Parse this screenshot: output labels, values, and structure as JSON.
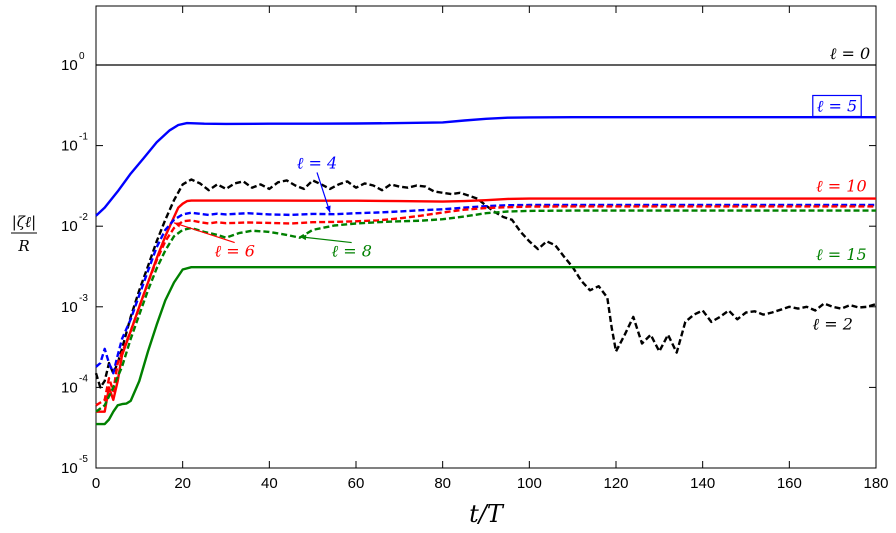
{
  "chart_data": {
    "type": "line",
    "xlabel": "t/T",
    "ylabel": {
      "numerator": "|ζℓ|",
      "denominator": "R"
    },
    "xlim": [
      0,
      180
    ],
    "ylim": [
      1e-05,
      5
    ],
    "yscale": "log",
    "grid": false,
    "xticks": [
      "0",
      "20",
      "40",
      "60",
      "80",
      "100",
      "120",
      "140",
      "160",
      "180"
    ],
    "yticks": [
      {
        "value": 1e-05,
        "base": "10",
        "exp": "-5"
      },
      {
        "value": 0.0001,
        "base": "10",
        "exp": "-4"
      },
      {
        "value": 0.001,
        "base": "10",
        "exp": "-3"
      },
      {
        "value": 0.01,
        "base": "10",
        "exp": "-2"
      },
      {
        "value": 0.1,
        "base": "10",
        "exp": "-1"
      },
      {
        "value": 1,
        "base": "10",
        "exp": "0"
      }
    ],
    "series": [
      {
        "name": "ℓ = 0",
        "color": "#000000",
        "dash": "solid",
        "width": 1.3,
        "x": [
          0,
          180
        ],
        "y": [
          1,
          1
        ]
      },
      {
        "name": "ℓ = 5",
        "color": "#0000ff",
        "dash": "solid",
        "width": 2.4,
        "x": [
          0,
          2,
          5,
          8,
          11,
          14,
          17,
          19,
          21,
          25,
          30,
          40,
          50,
          60,
          70,
          80,
          85,
          90,
          95,
          100,
          110,
          120,
          140,
          160,
          180
        ],
        "y": [
          0.0135,
          0.017,
          0.027,
          0.045,
          0.07,
          0.11,
          0.155,
          0.18,
          0.19,
          0.187,
          0.186,
          0.187,
          0.187,
          0.188,
          0.19,
          0.194,
          0.205,
          0.215,
          0.222,
          0.224,
          0.225,
          0.225,
          0.225,
          0.225,
          0.225
        ]
      },
      {
        "name": "ℓ = 2",
        "color": "#000000",
        "dash": "6,3",
        "width": 2.4,
        "x": [
          0,
          1,
          2,
          3,
          4,
          5,
          6,
          8,
          10,
          12,
          14,
          16,
          18,
          20,
          22,
          24,
          26,
          28,
          30,
          32,
          34,
          36,
          38,
          40,
          42,
          44,
          46,
          48,
          50,
          52,
          54,
          56,
          58,
          60,
          62,
          64,
          66,
          68,
          70,
          72,
          74,
          76,
          78,
          80,
          82,
          84,
          86,
          88,
          90,
          92,
          94,
          96,
          98,
          100,
          102,
          104,
          106,
          108,
          110,
          112,
          114,
          116,
          118,
          119,
          120,
          122,
          124,
          126,
          128,
          130,
          132,
          134,
          136,
          138,
          140,
          142,
          144,
          146,
          148,
          150,
          152,
          154,
          156,
          158,
          160,
          162,
          164,
          166,
          168,
          170,
          172,
          174,
          176,
          178,
          180
        ],
        "y": [
          0.00015,
          0.0001,
          0.00012,
          0.0002,
          0.00015,
          0.0002,
          0.0003,
          0.00075,
          0.0016,
          0.0032,
          0.0065,
          0.012,
          0.021,
          0.033,
          0.038,
          0.034,
          0.028,
          0.033,
          0.029,
          0.034,
          0.036,
          0.03,
          0.033,
          0.029,
          0.035,
          0.037,
          0.032,
          0.029,
          0.037,
          0.033,
          0.029,
          0.033,
          0.036,
          0.03,
          0.034,
          0.032,
          0.028,
          0.033,
          0.031,
          0.03,
          0.032,
          0.031,
          0.027,
          0.026,
          0.025,
          0.026,
          0.024,
          0.022,
          0.018,
          0.015,
          0.013,
          0.012,
          0.0085,
          0.0065,
          0.0052,
          0.0065,
          0.0058,
          0.0042,
          0.0031,
          0.0021,
          0.0016,
          0.0018,
          0.0013,
          0.00055,
          0.00028,
          0.00045,
          0.00075,
          0.00035,
          0.00045,
          0.00028,
          0.00045,
          0.00027,
          0.00065,
          0.0008,
          0.0009,
          0.00065,
          0.00075,
          0.0009,
          0.0007,
          0.00085,
          0.00088,
          0.0008,
          0.00085,
          0.00092,
          0.001,
          0.00095,
          0.001,
          0.0009,
          0.0011,
          0.001,
          0.00095,
          0.00105,
          0.00098,
          0.001,
          0.00108
        ]
      },
      {
        "name": "ℓ = 10",
        "color": "#ff0000",
        "dash": "solid",
        "width": 2.4,
        "x": [
          0,
          2,
          3,
          4,
          5,
          6,
          8,
          10,
          12,
          14,
          16,
          18,
          19,
          20,
          21,
          22,
          30,
          40,
          50,
          60,
          70,
          80,
          85,
          90,
          95,
          100,
          120,
          140,
          160,
          180
        ],
        "y": [
          5e-05,
          5e-05,
          0.0001,
          7e-05,
          0.00012,
          0.00025,
          0.0005,
          0.001,
          0.002,
          0.004,
          0.0075,
          0.013,
          0.017,
          0.019,
          0.0205,
          0.0208,
          0.0208,
          0.0208,
          0.0207,
          0.0207,
          0.0205,
          0.0202,
          0.0205,
          0.021,
          0.0218,
          0.022,
          0.022,
          0.022,
          0.022,
          0.022
        ]
      },
      {
        "name": "ℓ = 4",
        "color": "#0000ff",
        "dash": "6,3",
        "width": 2.4,
        "x": [
          0,
          1,
          2,
          3,
          4,
          5,
          6,
          8,
          10,
          12,
          14,
          16,
          18,
          20,
          22,
          24,
          26,
          28,
          30,
          35,
          40,
          45,
          50,
          55,
          60,
          65,
          70,
          75,
          80,
          85,
          90,
          95,
          100,
          110,
          120,
          140,
          160,
          180
        ],
        "y": [
          0.00018,
          0.0002,
          0.0003,
          0.0002,
          0.00015,
          0.00025,
          0.0004,
          0.0007,
          0.0014,
          0.0028,
          0.0055,
          0.009,
          0.012,
          0.014,
          0.0147,
          0.0142,
          0.0138,
          0.0143,
          0.014,
          0.0145,
          0.014,
          0.0138,
          0.0142,
          0.0141,
          0.0145,
          0.0148,
          0.0152,
          0.0158,
          0.0162,
          0.017,
          0.0177,
          0.0182,
          0.0183,
          0.0183,
          0.0183,
          0.0183,
          0.0183,
          0.0183
        ]
      },
      {
        "name": "ℓ = 6",
        "color": "#ff0000",
        "dash": "6,3",
        "width": 2.4,
        "x": [
          0,
          2,
          3,
          4,
          5,
          6,
          8,
          10,
          12,
          14,
          16,
          18,
          20,
          22,
          24,
          26,
          28,
          30,
          35,
          40,
          45,
          50,
          55,
          60,
          65,
          70,
          75,
          80,
          85,
          90,
          95,
          100,
          110,
          120,
          140,
          160,
          180
        ],
        "y": [
          6e-05,
          7e-05,
          0.00013,
          9e-05,
          0.0002,
          0.00027,
          0.0005,
          0.001,
          0.002,
          0.0038,
          0.0065,
          0.0095,
          0.0115,
          0.0118,
          0.0112,
          0.0108,
          0.0112,
          0.0109,
          0.0111,
          0.011,
          0.0108,
          0.0112,
          0.0113,
          0.0115,
          0.0118,
          0.0125,
          0.0135,
          0.0148,
          0.016,
          0.0168,
          0.0172,
          0.0175,
          0.0176,
          0.0176,
          0.0176,
          0.0176,
          0.0176
        ]
      },
      {
        "name": "ℓ = 8",
        "color": "#008000",
        "dash": "6,3",
        "width": 2.4,
        "x": [
          0,
          2,
          4,
          6,
          8,
          10,
          12,
          14,
          16,
          18,
          20,
          22,
          25,
          28,
          30,
          33,
          36,
          40,
          44,
          47,
          50,
          55,
          60,
          65,
          70,
          75,
          80,
          85,
          90,
          95,
          100,
          110,
          120,
          140,
          160,
          180
        ],
        "y": [
          5e-05,
          6e-05,
          0.0001,
          0.00018,
          0.0004,
          0.0008,
          0.0016,
          0.003,
          0.005,
          0.0075,
          0.009,
          0.0095,
          0.0085,
          0.0078,
          0.0072,
          0.0082,
          0.0088,
          0.0085,
          0.0078,
          0.0072,
          0.009,
          0.0102,
          0.0108,
          0.0112,
          0.0115,
          0.0117,
          0.0122,
          0.0132,
          0.0145,
          0.0152,
          0.0155,
          0.0156,
          0.0156,
          0.0156,
          0.0156,
          0.0156
        ]
      },
      {
        "name": "ℓ = 15",
        "color": "#008000",
        "dash": "solid",
        "width": 2.4,
        "x": [
          0,
          2,
          3,
          4,
          5,
          6,
          7,
          8,
          10,
          12,
          14,
          16,
          18,
          20,
          22,
          30,
          40,
          60,
          80,
          100,
          120,
          140,
          160,
          180
        ],
        "y": [
          3.5e-05,
          3.5e-05,
          4e-05,
          5e-05,
          6e-05,
          6.2e-05,
          6.3e-05,
          6.8e-05,
          0.00012,
          0.00028,
          0.0006,
          0.0012,
          0.002,
          0.0029,
          0.0031,
          0.0031,
          0.0031,
          0.0031,
          0.0031,
          0.0031,
          0.0031,
          0.0031,
          0.0031,
          0.0031
        ]
      }
    ],
    "annotations": [
      {
        "id": "l0",
        "text": "ℓ = 0",
        "color": "#000000",
        "x": 174,
        "y": 1.18,
        "box": false
      },
      {
        "id": "l5",
        "text": "ℓ = 5",
        "color": "#0000ff",
        "x": 171,
        "y": 0.265,
        "box": true
      },
      {
        "id": "l4",
        "text": "ℓ = 4",
        "color": "#0000ff",
        "x": 51,
        "y": 0.052,
        "box": false,
        "arrow_to": [
          54,
          0.0148
        ]
      },
      {
        "id": "l10",
        "text": "ℓ = 10",
        "color": "#ff0000",
        "x": 172,
        "y": 0.027,
        "box": false
      },
      {
        "id": "l6",
        "text": "ℓ = 6",
        "color": "#ff0000",
        "x": 32,
        "y": 0.0042,
        "box": false,
        "arrow_to": [
          18,
          0.011
        ]
      },
      {
        "id": "l8",
        "text": "ℓ = 8",
        "color": "#008000",
        "x": 59,
        "y": 0.0042,
        "box": false,
        "arrow_to": [
          47,
          0.0074
        ]
      },
      {
        "id": "l15",
        "text": "ℓ = 15",
        "color": "#008000",
        "x": 172,
        "y": 0.0038,
        "box": false
      },
      {
        "id": "l2",
        "text": "ℓ = 2",
        "color": "#000000",
        "x": 170,
        "y": 0.00052,
        "box": false
      }
    ]
  }
}
